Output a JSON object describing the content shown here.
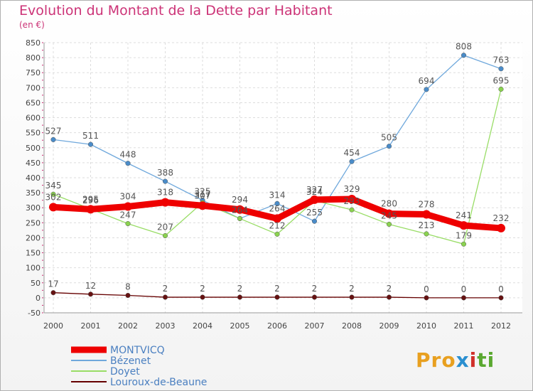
{
  "chart_data": {
    "type": "line",
    "title": "Evolution du Montant de la Dette par Habitant",
    "subtitle": "(en €)",
    "x": [
      "2000",
      "2001",
      "2002",
      "2003",
      "2004",
      "2005",
      "2006",
      "2007",
      "2008",
      "2009",
      "2010",
      "2011",
      "2012"
    ],
    "yticks": [
      -50,
      0,
      50,
      100,
      150,
      200,
      250,
      300,
      350,
      400,
      450,
      500,
      550,
      600,
      650,
      700,
      750,
      800,
      850
    ],
    "ylim": [
      -50,
      850
    ],
    "grid": true,
    "legend_position": "bottom-left",
    "series": [
      {
        "name": "MONTVICQ",
        "color": "#ee0000",
        "values": [
          302,
          295,
          304,
          318,
          307,
          294,
          264,
          327,
          329,
          280,
          278,
          241,
          232
        ]
      },
      {
        "name": "Bézenet",
        "color": "#6fa8dc",
        "values": [
          527,
          511,
          448,
          388,
          325,
          264,
          314,
          255,
          454,
          505,
          694,
          808,
          763
        ]
      },
      {
        "name": "Doyet",
        "color": "#99dd66",
        "values": [
          345,
          296,
          247,
          207,
          317,
          264,
          212,
          324,
          293,
          245,
          213,
          179,
          695
        ]
      },
      {
        "name": "Louroux-de-Beaune",
        "color": "#660000",
        "values": [
          17,
          12,
          8,
          2,
          2,
          2,
          2,
          2,
          2,
          2,
          0,
          0,
          0
        ]
      }
    ]
  },
  "brand": {
    "logo_text": [
      "Pro",
      "x",
      "i",
      "ti"
    ]
  }
}
